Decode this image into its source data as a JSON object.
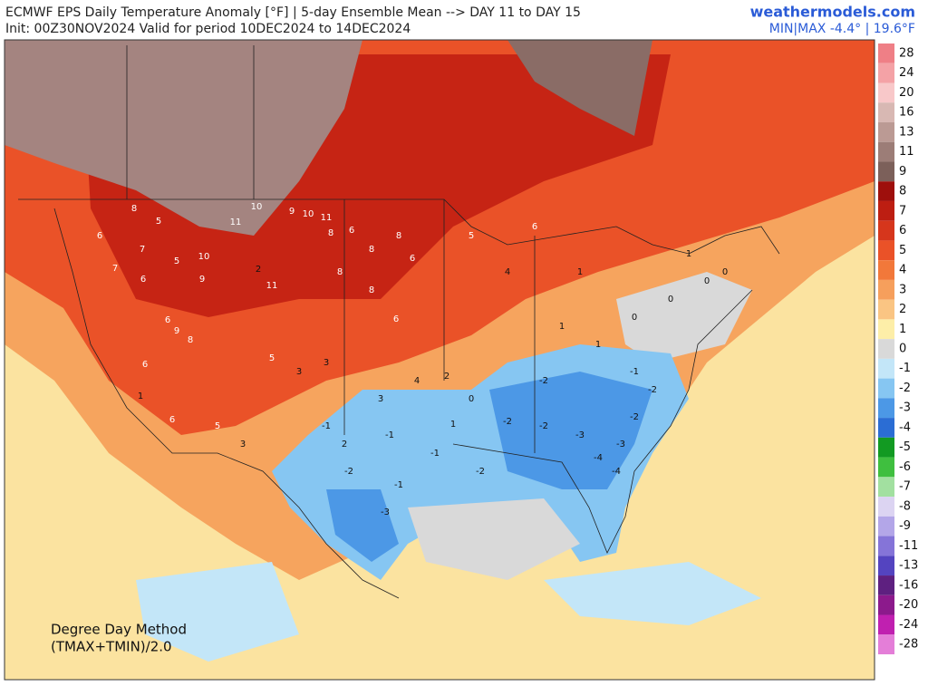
{
  "header": {
    "title": "ECMWF EPS Daily Temperature Anomaly [°F] | 5-day Ensemble Mean --> DAY 11 to DAY 15",
    "subtitle": "Init: 00Z30NOV2024 Valid for period 10DEC2024 to 14DEC2024",
    "site": "weathermodels.com",
    "minmax": "MIN|MAX -4.4° | 19.6°F"
  },
  "legend": {
    "levels": [
      28,
      24,
      20,
      16,
      13,
      11,
      9,
      8,
      7,
      6,
      5,
      4,
      3,
      2,
      1,
      0,
      -1,
      -2,
      -3,
      -4,
      -5,
      -6,
      -7,
      -8,
      -9,
      -11,
      -13,
      -16,
      -20,
      -24,
      -28
    ],
    "colors": [
      "#ef7f86",
      "#f4a2a6",
      "#f8c8c9",
      "#d8b8b3",
      "#bb9a94",
      "#9c7d77",
      "#7c605a",
      "#9e0f0c",
      "#bd1e12",
      "#d6361c",
      "#ea5228",
      "#f2783a",
      "#f69f5c",
      "#fac583",
      "#fdeea8",
      "#d9d9d9",
      "#c3e6f8",
      "#86c6f2",
      "#4c98e6",
      "#2b6dd4",
      "#129a22",
      "#3fbf3f",
      "#a2e0a0",
      "#dcd4f2",
      "#b3a6e8",
      "#8574d8",
      "#5444c0",
      "#5e2080",
      "#8c1a8c",
      "#c020b0",
      "#e47ed8"
    ]
  },
  "notes": {
    "method": "Degree Day Method",
    "formula": "(TMAX+TMIN)/2.0"
  },
  "map_labels": [
    8,
    5,
    6,
    7,
    7,
    6,
    5,
    9,
    10,
    11,
    10,
    9,
    10,
    11,
    6,
    8,
    8,
    8,
    6,
    8,
    8,
    6,
    11,
    2,
    6,
    9,
    8,
    6,
    1,
    6,
    5,
    3,
    5,
    3,
    3,
    3,
    4,
    2,
    0,
    1,
    -1,
    -1,
    2,
    -1,
    -1,
    -2,
    -3,
    -2,
    -2,
    -2,
    -3,
    -4,
    -4,
    -3,
    -2,
    -2,
    -1,
    -2,
    1,
    1,
    0,
    0,
    0,
    0,
    1,
    4,
    5,
    6,
    1
  ]
}
